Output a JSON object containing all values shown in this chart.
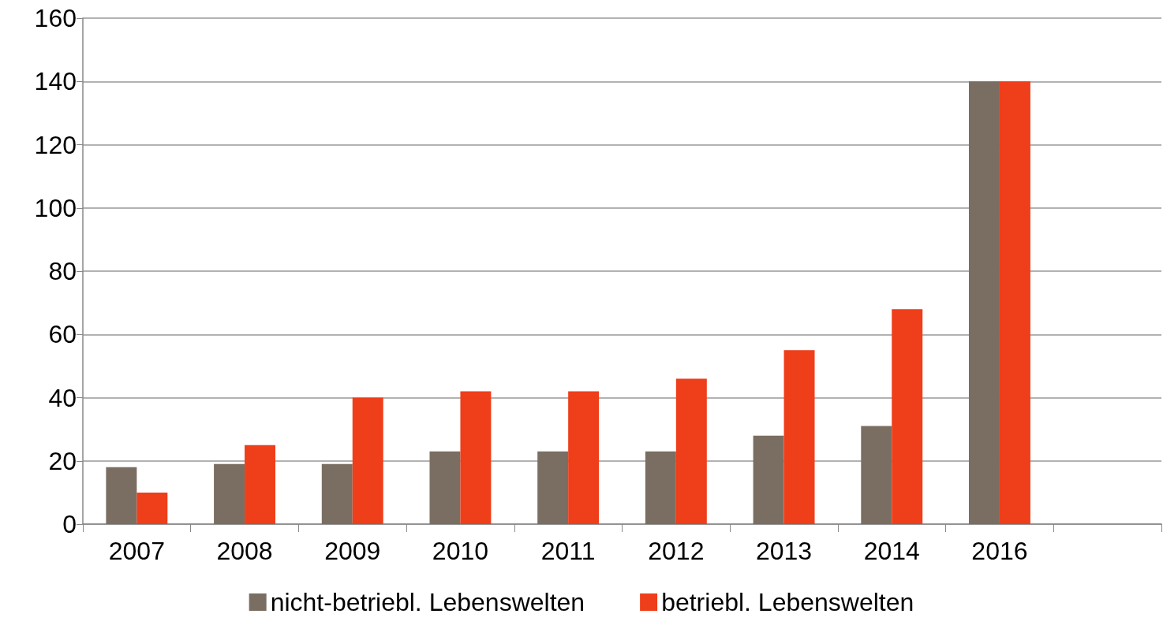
{
  "chart_data": {
    "type": "bar",
    "categories": [
      "2007",
      "2008",
      "2009",
      "2010",
      "2011",
      "2012",
      "2013",
      "2014",
      "2016",
      null
    ],
    "series": [
      {
        "name": "nicht-betriebl. Lebenswelten",
        "color": "#7a6e62",
        "values": [
          18,
          19,
          19,
          23,
          23,
          23,
          28,
          31,
          140,
          null
        ]
      },
      {
        "name": "betriebl. Lebenswelten",
        "color": "#ef3e1a",
        "values": [
          10,
          25,
          40,
          42,
          42,
          46,
          55,
          68,
          140,
          null
        ]
      }
    ],
    "ylim": [
      0,
      160
    ],
    "yticks": [
      0,
      20,
      40,
      60,
      80,
      100,
      120,
      140,
      160
    ],
    "grid": "y",
    "legend": "bottom"
  }
}
